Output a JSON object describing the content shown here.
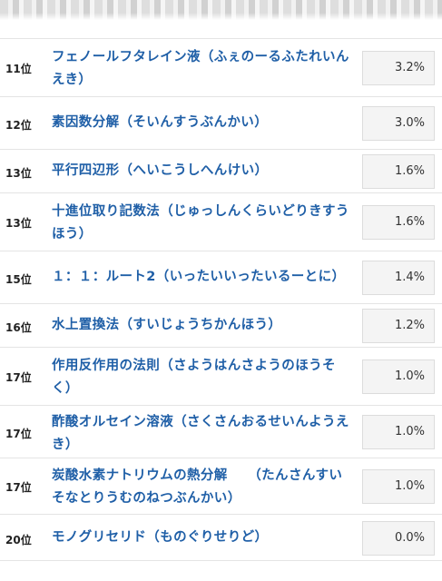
{
  "ranking": {
    "items": [
      {
        "rank": "11位",
        "name": "フェノールフタレイン液（ふぇのーるふたれいんえき）",
        "percent": "3.2%"
      },
      {
        "rank": "12位",
        "name": "素因数分解（そいんすうぶんかい）",
        "percent": "3.0%"
      },
      {
        "rank": "13位",
        "name": "平行四辺形（へいこうしへんけい）",
        "percent": "1.6%"
      },
      {
        "rank": "13位",
        "name": "十進位取り記数法（じゅっしんくらいどりきすうほう）",
        "percent": "1.6%"
      },
      {
        "rank": "15位",
        "name": "１：１：ルート2（いったいいったいるーとに）",
        "percent": "1.4%"
      },
      {
        "rank": "16位",
        "name": "水上置換法（すいじょうちかんほう）",
        "percent": "1.2%"
      },
      {
        "rank": "17位",
        "name": "作用反作用の法則（さようはんさようのほうそく）",
        "percent": "1.0%"
      },
      {
        "rank": "17位",
        "name": "酢酸オルセイン溶液（さくさんおるせいんようえき）",
        "percent": "1.0%"
      },
      {
        "rank": "17位",
        "name": "炭酸水素ナトリウムの熱分解　　（たんさんすいそなとりうむのねつぶんかい）",
        "percent": "1.0%"
      },
      {
        "rank": "20位",
        "name": "モノグリセリド（ものぐりせりど）",
        "percent": "0.0%"
      }
    ]
  }
}
